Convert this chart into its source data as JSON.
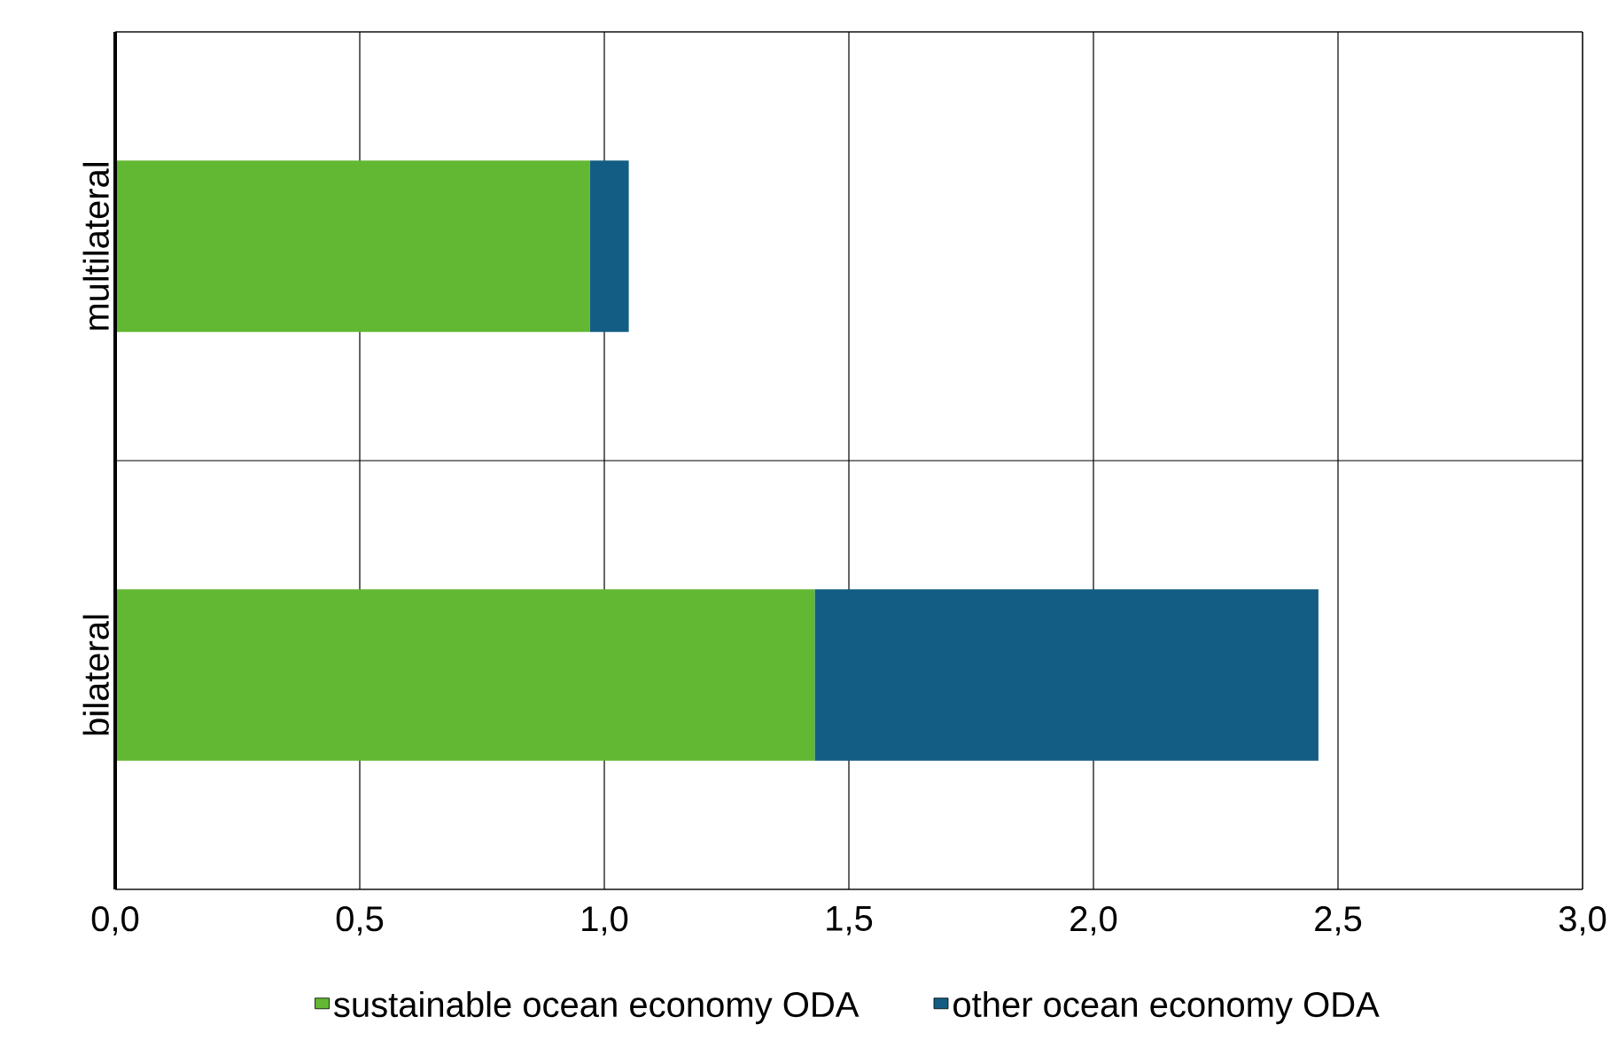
{
  "chart_data": {
    "type": "bar",
    "orientation": "horizontal",
    "stacked": true,
    "categories": [
      "multilateral",
      "bilateral"
    ],
    "series": [
      {
        "name": "sustainable ocean economy ODA",
        "color": "#62b832",
        "values": [
          0.97,
          1.43
        ]
      },
      {
        "name": "other ocean economy ODA",
        "color": "#135d84",
        "values": [
          0.08,
          1.03
        ]
      }
    ],
    "xlim": [
      0,
      3
    ],
    "xticks": [
      {
        "value": 0,
        "label": "0,0"
      },
      {
        "value": 0.5,
        "label": "0,5"
      },
      {
        "value": 1,
        "label": "1,0"
      },
      {
        "value": 1.5,
        "label": "1,5"
      },
      {
        "value": 2,
        "label": "2,0"
      },
      {
        "value": 2.5,
        "label": "2,5"
      },
      {
        "value": 3,
        "label": "3,0"
      }
    ],
    "grid": true,
    "legend": "bottom"
  }
}
